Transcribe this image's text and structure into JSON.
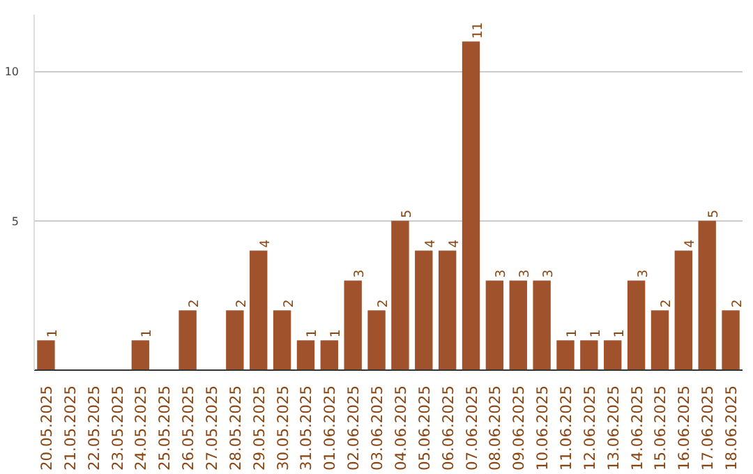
{
  "chart_data": {
    "type": "bar",
    "categories": [
      "20.05.2025",
      "21.05.2025",
      "22.05.2025",
      "23.05.2025",
      "24.05.2025",
      "25.05.2025",
      "26.05.2025",
      "27.05.2025",
      "28.05.2025",
      "29.05.2025",
      "30.05.2025",
      "31.05.2025",
      "01.06.2025",
      "02.06.2025",
      "03.06.2025",
      "04.06.2025",
      "05.06.2025",
      "06.06.2025",
      "07.06.2025",
      "08.06.2025",
      "09.06.2025",
      "10.06.2025",
      "11.06.2025",
      "12.06.2025",
      "13.06.2025",
      "14.06.2025",
      "15.06.2025",
      "16.06.2025",
      "17.06.2025",
      "18.06.2025"
    ],
    "values": [
      1,
      0,
      0,
      0,
      1,
      0,
      2,
      0,
      2,
      4,
      2,
      1,
      1,
      3,
      2,
      5,
      4,
      4,
      11,
      3,
      3,
      3,
      1,
      1,
      1,
      3,
      2,
      4,
      5,
      2
    ],
    "value_labels": [
      "1",
      null,
      null,
      null,
      "1",
      null,
      "2",
      null,
      "2",
      "4",
      "2",
      "1",
      "1",
      "3",
      "2",
      "5",
      "4",
      "4",
      "11",
      "3",
      "3",
      "3",
      "1",
      "1",
      "1",
      "3",
      "2",
      "4",
      "5",
      "2"
    ],
    "color": "#a0522d",
    "ylim": [
      0,
      11.9
    ],
    "yticks": [
      5,
      10
    ],
    "grid": "y"
  }
}
